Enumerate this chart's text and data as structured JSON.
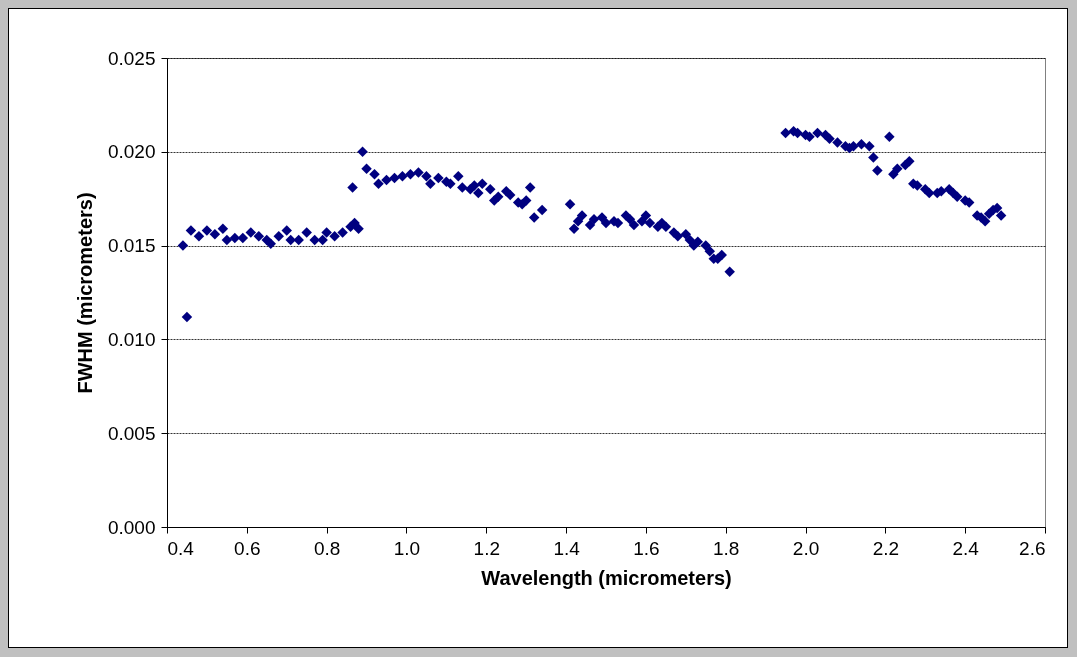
{
  "chart_data": {
    "type": "scatter",
    "xlabel": "Wavelength (micrometers)",
    "ylabel": "FWHM (micrometers)",
    "xlim": [
      0.4,
      2.6
    ],
    "ylim": [
      0,
      0.025
    ],
    "xticks": [
      {
        "value": 0.4,
        "label": "0.4"
      },
      {
        "value": 0.6,
        "label": "0.6"
      },
      {
        "value": 0.8,
        "label": "0.8"
      },
      {
        "value": 1.0,
        "label": "1.0"
      },
      {
        "value": 1.2,
        "label": "1.2"
      },
      {
        "value": 1.4,
        "label": "1.4"
      },
      {
        "value": 1.6,
        "label": "1.6"
      },
      {
        "value": 1.8,
        "label": "1.8"
      },
      {
        "value": 2.0,
        "label": "2.0"
      },
      {
        "value": 2.2,
        "label": "2.2"
      },
      {
        "value": 2.4,
        "label": "2.4"
      },
      {
        "value": 2.6,
        "label": "2.6"
      }
    ],
    "yticks": [
      {
        "value": 0,
        "label": "0.000"
      },
      {
        "value": 0.005,
        "label": "0.005"
      },
      {
        "value": 0.01,
        "label": "0.010"
      },
      {
        "value": 0.015,
        "label": "0.015"
      },
      {
        "value": 0.02,
        "label": "0.020"
      },
      {
        "value": 0.025,
        "label": "0.025"
      }
    ],
    "grid": "y",
    "marker": "diamond",
    "x": [
      0.44,
      0.45,
      0.46,
      0.48,
      0.5,
      0.52,
      0.54,
      0.55,
      0.57,
      0.59,
      0.61,
      0.63,
      0.65,
      0.66,
      0.68,
      0.7,
      0.71,
      0.73,
      0.75,
      0.77,
      0.79,
      0.8,
      0.82,
      0.84,
      0.86,
      0.87,
      0.865,
      0.88,
      0.89,
      0.9,
      0.92,
      0.93,
      0.95,
      0.97,
      0.99,
      1.01,
      1.03,
      1.05,
      1.06,
      1.08,
      1.1,
      1.11,
      1.13,
      1.14,
      1.16,
      1.17,
      1.18,
      1.19,
      1.21,
      1.22,
      1.23,
      1.25,
      1.26,
      1.28,
      1.29,
      1.3,
      1.31,
      1.32,
      1.34,
      1.41,
      1.42,
      1.43,
      1.44,
      1.46,
      1.47,
      1.49,
      1.5,
      1.52,
      1.53,
      1.55,
      1.56,
      1.57,
      1.59,
      1.6,
      1.61,
      1.63,
      1.64,
      1.65,
      1.67,
      1.68,
      1.7,
      1.71,
      1.72,
      1.73,
      1.75,
      1.76,
      1.77,
      1.78,
      1.79,
      1.81,
      1.95,
      1.97,
      1.98,
      2.0,
      2.01,
      2.03,
      2.05,
      2.06,
      2.08,
      2.1,
      2.11,
      2.12,
      2.14,
      2.16,
      2.17,
      2.18,
      2.21,
      2.22,
      2.23,
      2.25,
      2.26,
      2.27,
      2.28,
      2.3,
      2.31,
      2.33,
      2.34,
      2.36,
      2.37,
      2.38,
      2.4,
      2.41,
      2.43,
      2.44,
      2.45,
      2.46,
      2.47,
      2.48,
      2.49
    ],
    "series": [
      {
        "color": "#000080",
        "values": [
          0.015,
          0.0112,
          0.0158,
          0.0155,
          0.0158,
          0.0156,
          0.0159,
          0.0153,
          0.0154,
          0.0154,
          0.0157,
          0.0155,
          0.0153,
          0.0151,
          0.0155,
          0.0158,
          0.0153,
          0.0153,
          0.0157,
          0.0153,
          0.0153,
          0.0157,
          0.0155,
          0.0157,
          0.016,
          0.0162,
          0.0181,
          0.0159,
          0.02,
          0.0191,
          0.0188,
          0.0183,
          0.0185,
          0.0186,
          0.0187,
          0.0188,
          0.0189,
          0.0187,
          0.0183,
          0.0186,
          0.0184,
          0.0183,
          0.0187,
          0.0181,
          0.018,
          0.0182,
          0.0178,
          0.0183,
          0.018,
          0.0174,
          0.0176,
          0.0179,
          0.0177,
          0.0173,
          0.0172,
          0.0174,
          0.0181,
          0.0165,
          0.0169,
          0.0172,
          0.0159,
          0.0163,
          0.0166,
          0.0161,
          0.0164,
          0.0165,
          0.0162,
          0.0163,
          0.0162,
          0.0166,
          0.0164,
          0.0161,
          0.0163,
          0.0166,
          0.0162,
          0.016,
          0.0162,
          0.016,
          0.0157,
          0.0155,
          0.0156,
          0.0153,
          0.015,
          0.0152,
          0.015,
          0.0147,
          0.0143,
          0.0143,
          0.0145,
          0.0136,
          0.021,
          0.0211,
          0.021,
          0.0209,
          0.0208,
          0.021,
          0.0209,
          0.0207,
          0.0205,
          0.0203,
          0.0202,
          0.0203,
          0.0204,
          0.0203,
          0.0197,
          0.019,
          0.0208,
          0.0188,
          0.0191,
          0.0193,
          0.0195,
          0.0183,
          0.0182,
          0.018,
          0.0178,
          0.0178,
          0.0179,
          0.018,
          0.0178,
          0.0176,
          0.0174,
          0.0173,
          0.0166,
          0.0165,
          0.0163,
          0.0167,
          0.0169,
          0.017,
          0.0166
        ]
      }
    ]
  }
}
